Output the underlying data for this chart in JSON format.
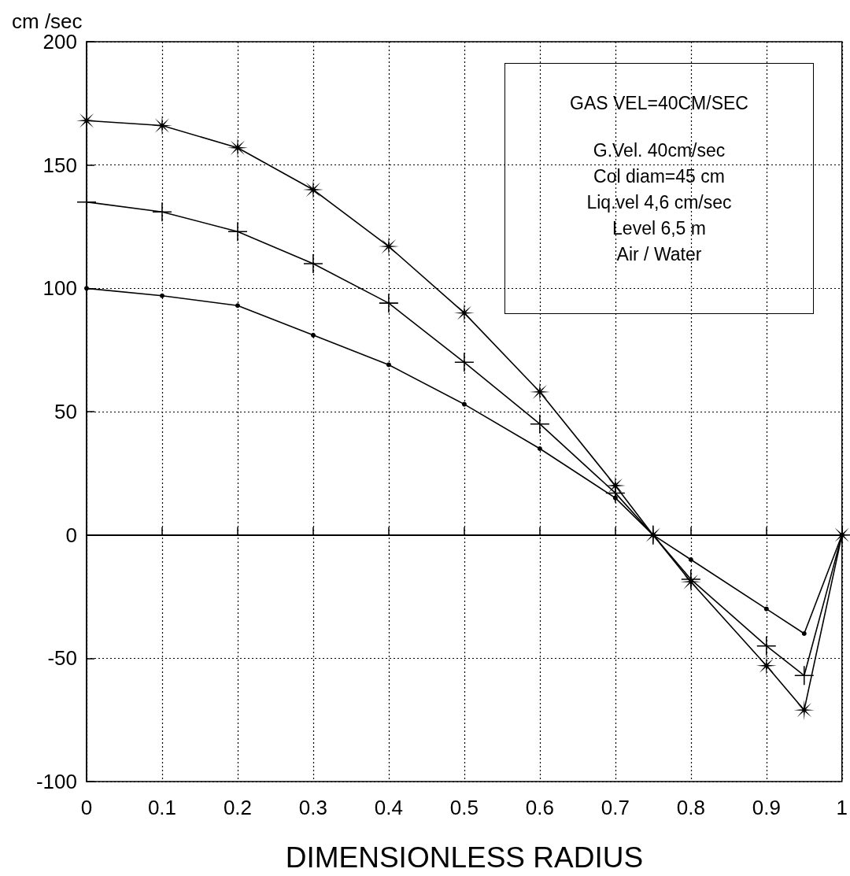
{
  "chart_data": {
    "type": "line",
    "ylabel": "cm /sec",
    "xlabel": "DIMENSIONLESS RADIUS",
    "annotations": [
      "GAS VEL=40CM/SEC",
      "G.Vel. 40cm/sec",
      "Col diam=45 cm",
      "Liq.vel 4,6 cm/sec",
      "Level 6,5 m",
      "Air / Water"
    ],
    "x": [
      0,
      0.1,
      0.2,
      0.3,
      0.4,
      0.5,
      0.6,
      0.7,
      0.75,
      0.8,
      0.9,
      0.95,
      1
    ],
    "series": [
      {
        "color": "#000000",
        "marker": "star",
        "values": [
          168,
          166,
          157,
          140,
          117,
          90,
          58,
          20,
          0,
          -19,
          -53,
          -71,
          0
        ]
      },
      {
        "color": "#000000",
        "marker": "cross",
        "values": [
          135,
          131,
          123,
          110,
          94,
          70,
          45,
          17,
          0,
          -18,
          -45,
          -57,
          0
        ]
      },
      {
        "color": "#000000",
        "marker": "circle",
        "values": [
          100,
          97,
          93,
          81,
          69,
          53,
          35,
          15,
          0,
          -10,
          -30,
          -40,
          0
        ]
      }
    ],
    "xlim": [
      0,
      1
    ],
    "xticks": [
      0,
      0.1,
      0.2,
      0.3,
      0.4,
      0.5,
      0.6,
      0.7,
      0.8,
      0.9,
      1
    ],
    "ylim": [
      -100,
      200
    ],
    "yticks": [
      -100,
      -50,
      0,
      50,
      100,
      150,
      200
    ],
    "ref_lines": [
      {
        "axis": "y",
        "value": 0,
        "color": "#000000",
        "line_style": "solid"
      }
    ],
    "grid": true,
    "line_style": "solid"
  }
}
